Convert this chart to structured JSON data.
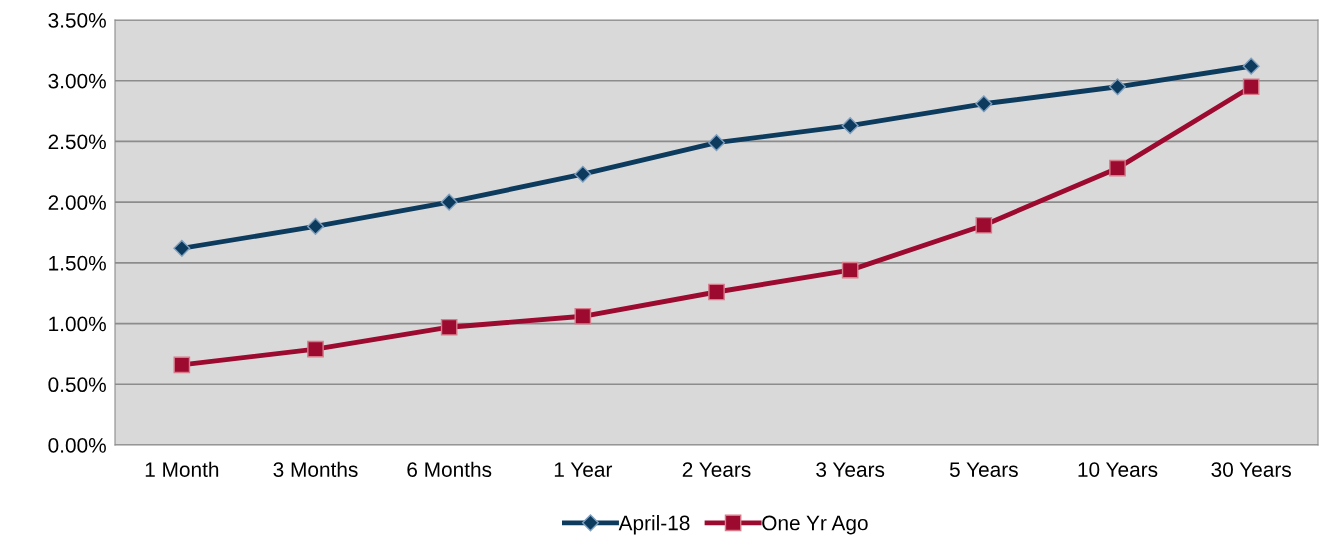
{
  "chart_data": {
    "type": "line",
    "categories": [
      "1 Month",
      "3 Months",
      "6 Months",
      "1 Year",
      "2 Years",
      "3 Years",
      "5 Years",
      "10 Years",
      "30 Years"
    ],
    "series": [
      {
        "name": "April-18",
        "color": "#0d3b5e",
        "marker": "diamond",
        "values": [
          1.62,
          1.8,
          2.0,
          2.23,
          2.49,
          2.63,
          2.81,
          2.95,
          3.12
        ]
      },
      {
        "name": "One Yr Ago",
        "color": "#9c0a30",
        "marker": "square",
        "values": [
          0.66,
          0.79,
          0.97,
          1.06,
          1.26,
          1.44,
          1.81,
          2.28,
          2.95
        ]
      }
    ],
    "ylim": [
      0,
      3.5
    ],
    "yticks": [
      {
        "value": 0,
        "label": "0.00%"
      },
      {
        "value": 0.5,
        "label": "0.50%"
      },
      {
        "value": 1,
        "label": "1.00%"
      },
      {
        "value": 1.5,
        "label": "1.50%"
      },
      {
        "value": 2,
        "label": "2.00%"
      },
      {
        "value": 2.5,
        "label": "2.50%"
      },
      {
        "value": 3,
        "label": "3.00%"
      },
      {
        "value": 3.5,
        "label": "3.50%"
      }
    ],
    "grid": "y",
    "legend": "bottom",
    "line_style": "solid"
  }
}
